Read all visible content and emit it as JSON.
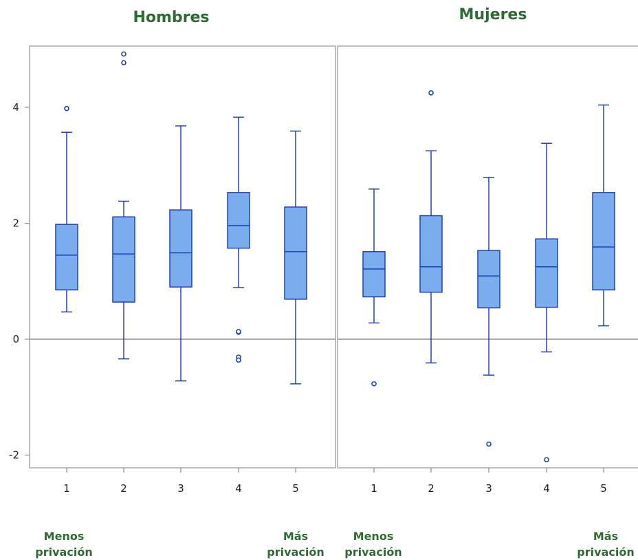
{
  "chart_data": [
    {
      "type": "box",
      "title": "Hombres",
      "categories": [
        "1",
        "2",
        "3",
        "4",
        "5"
      ],
      "ylim": [
        -2.2,
        5.1
      ],
      "yticks": [
        -2,
        0,
        2,
        4
      ],
      "grid": false,
      "reference_line": 0,
      "boxes": [
        {
          "x": "1",
          "whisker_low": 0.47,
          "q1": 0.85,
          "median": 1.45,
          "q3": 1.98,
          "whisker_high": 3.57,
          "outliers": [
            3.98
          ]
        },
        {
          "x": "2",
          "whisker_low": -0.34,
          "q1": 0.64,
          "median": 1.47,
          "q3": 2.11,
          "whisker_high": 2.38,
          "outliers": [
            4.77,
            4.92
          ]
        },
        {
          "x": "3",
          "whisker_low": -0.72,
          "q1": 0.9,
          "median": 1.49,
          "q3": 2.23,
          "whisker_high": 3.68,
          "outliers": []
        },
        {
          "x": "4",
          "whisker_low": 0.89,
          "q1": 1.57,
          "median": 1.96,
          "q3": 2.53,
          "whisker_high": 3.83,
          "outliers": [
            0.12,
            0.13,
            -0.31,
            -0.36
          ]
        },
        {
          "x": "5",
          "whisker_low": -0.77,
          "q1": 0.69,
          "median": 1.51,
          "q3": 2.28,
          "whisker_high": 3.59,
          "outliers": []
        }
      ],
      "annotations": {
        "low_line1": "Menos",
        "low_line2": "privación",
        "high_line1": "Más",
        "high_line2": "privación"
      }
    },
    {
      "type": "box",
      "title": "Mujeres",
      "categories": [
        "1",
        "2",
        "3",
        "4",
        "5"
      ],
      "ylim": [
        -2.2,
        5.1
      ],
      "yticks": [
        -2,
        0,
        2,
        4
      ],
      "grid": false,
      "reference_line": 0,
      "boxes": [
        {
          "x": "1",
          "whisker_low": 0.28,
          "q1": 0.73,
          "median": 1.21,
          "q3": 1.51,
          "whisker_high": 2.59,
          "outliers": [
            -0.77
          ]
        },
        {
          "x": "2",
          "whisker_low": -0.41,
          "q1": 0.81,
          "median": 1.25,
          "q3": 2.13,
          "whisker_high": 3.25,
          "outliers": [
            4.25
          ]
        },
        {
          "x": "3",
          "whisker_low": -0.62,
          "q1": 0.54,
          "median": 1.09,
          "q3": 1.53,
          "whisker_high": 2.79,
          "outliers": [
            -1.81
          ]
        },
        {
          "x": "4",
          "whisker_low": -0.22,
          "q1": 0.55,
          "median": 1.25,
          "q3": 1.73,
          "whisker_high": 3.38,
          "outliers": [
            -2.08
          ]
        },
        {
          "x": "5",
          "whisker_low": 0.23,
          "q1": 0.85,
          "median": 1.59,
          "q3": 2.53,
          "whisker_high": 4.04,
          "outliers": []
        }
      ],
      "annotations": {
        "low_line1": "Menos",
        "low_line2": "privación",
        "high_line1": "Más",
        "high_line2": "privación"
      }
    }
  ],
  "colors": {
    "box_fill": "#7aacee",
    "box_stroke": "#1d42b8",
    "title": "#2e6b33",
    "frame": "#a6a6a6"
  }
}
